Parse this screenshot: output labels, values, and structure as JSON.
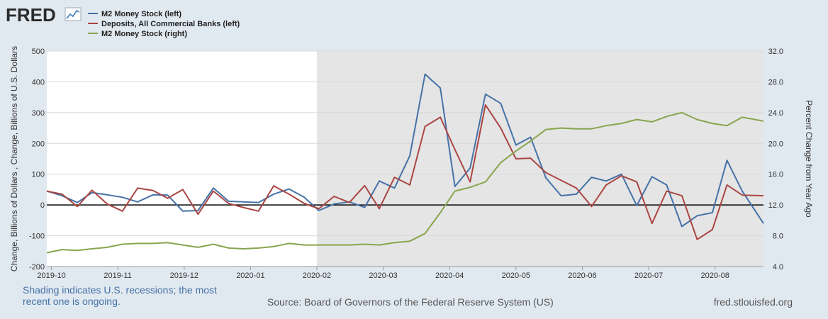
{
  "header": {
    "logo_text": "FRED",
    "legend": [
      {
        "label": "M2 Money Stock (left)",
        "color": "#4572a7"
      },
      {
        "label": "Deposits, All Commercial Banks (left)",
        "color": "#aa4643"
      },
      {
        "label": "M2 Money Stock (right)",
        "color": "#89a54e"
      }
    ]
  },
  "chart_data": {
    "type": "line",
    "x_tick_labels": [
      "2019-10",
      "2019-11",
      "2019-12",
      "2020-01",
      "2020-02",
      "2020-03",
      "2020-04",
      "2020-05",
      "2020-06",
      "2020-07",
      "2020-08"
    ],
    "left_axis": {
      "title": "Change, Billions of Dollars , Change, Billions of U.S. Dollars",
      "ylim": [
        -200,
        500
      ],
      "ticks": [
        -200,
        -100,
        0,
        100,
        200,
        300,
        400,
        500
      ],
      "tick_labels": [
        "-200",
        "-100",
        "0",
        "100",
        "200",
        "300",
        "400",
        "500"
      ]
    },
    "right_axis": {
      "title": "Percent Change from Year Ago",
      "ylim": [
        4.0,
        32.0
      ],
      "ticks": [
        4,
        8,
        12,
        16,
        20,
        24,
        28,
        32
      ],
      "tick_labels": [
        "4.0",
        "8.0",
        "12.0",
        "16.0",
        "20.0",
        "24.0",
        "28.0",
        "32.0"
      ]
    },
    "recession_start_index": 4,
    "x_range": [
      -0.07,
      10.73
    ],
    "series": [
      {
        "name": "M2 Money Stock (left)",
        "axis": "left",
        "color": "#4572a7",
        "x": [
          -0.07,
          0.16,
          0.39,
          0.61,
          0.84,
          1.07,
          1.3,
          1.53,
          1.75,
          1.98,
          2.21,
          2.44,
          2.67,
          2.89,
          3.12,
          3.35,
          3.58,
          3.81,
          4.03,
          4.26,
          4.49,
          4.72,
          4.94,
          5.17,
          5.4,
          5.63,
          5.86,
          6.08,
          6.31,
          6.54,
          6.77,
          7.0,
          7.22,
          7.45,
          7.68,
          7.91,
          8.14,
          8.36,
          8.59,
          8.82,
          9.05,
          9.27,
          9.5,
          9.73,
          9.96,
          10.18,
          10.41,
          10.73
        ],
        "values": [
          45,
          30,
          8,
          40,
          33,
          25,
          10,
          33,
          32,
          -20,
          -18,
          55,
          12,
          10,
          8,
          35,
          52,
          25,
          -18,
          3,
          10,
          -8,
          78,
          55,
          160,
          425,
          380,
          60,
          120,
          360,
          330,
          195,
          220,
          88,
          30,
          35,
          90,
          78,
          100,
          -2,
          92,
          65,
          -70,
          -35,
          -25,
          145,
          45,
          -60
        ]
      },
      {
        "name": "Deposits, All Commercial Banks (left)",
        "axis": "left",
        "color": "#aa4643",
        "x": [
          -0.07,
          0.16,
          0.39,
          0.61,
          0.84,
          1.07,
          1.3,
          1.53,
          1.75,
          1.98,
          2.21,
          2.44,
          2.67,
          2.89,
          3.12,
          3.35,
          3.58,
          3.81,
          4.03,
          4.26,
          4.49,
          4.72,
          4.94,
          5.17,
          5.4,
          5.63,
          5.86,
          6.08,
          6.31,
          6.54,
          6.77,
          7.0,
          7.22,
          7.45,
          7.68,
          7.91,
          8.14,
          8.36,
          8.59,
          8.82,
          9.05,
          9.27,
          9.5,
          9.73,
          9.96,
          10.18,
          10.41,
          10.73
        ],
        "values": [
          45,
          35,
          -5,
          48,
          3,
          -20,
          55,
          47,
          22,
          50,
          -30,
          45,
          5,
          -8,
          -20,
          62,
          35,
          5,
          -12,
          28,
          8,
          63,
          -12,
          90,
          65,
          255,
          285,
          180,
          75,
          325,
          250,
          150,
          152,
          105,
          80,
          55,
          -5,
          65,
          95,
          75,
          -60,
          45,
          30,
          -112,
          -80,
          65,
          32,
          30
        ]
      },
      {
        "name": "M2 Money Stock (right)",
        "axis": "right",
        "color": "#89a54e",
        "x": [
          -0.07,
          0.16,
          0.39,
          0.61,
          0.84,
          1.07,
          1.3,
          1.53,
          1.75,
          1.98,
          2.21,
          2.44,
          2.67,
          2.89,
          3.12,
          3.35,
          3.58,
          3.81,
          4.03,
          4.26,
          4.49,
          4.72,
          4.94,
          5.17,
          5.4,
          5.63,
          5.86,
          6.08,
          6.31,
          6.54,
          6.77,
          7.0,
          7.22,
          7.45,
          7.68,
          7.91,
          8.14,
          8.36,
          8.59,
          8.82,
          9.05,
          9.27,
          9.5,
          9.73,
          9.96,
          10.18,
          10.41,
          10.73
        ],
        "values": [
          5.8,
          6.2,
          6.1,
          6.3,
          6.5,
          6.9,
          7.0,
          7.0,
          7.1,
          6.8,
          6.5,
          6.9,
          6.4,
          6.3,
          6.4,
          6.6,
          7.0,
          6.8,
          6.8,
          6.8,
          6.8,
          6.9,
          6.8,
          7.1,
          7.3,
          8.3,
          11.0,
          13.8,
          14.3,
          15.0,
          17.5,
          19.0,
          20.3,
          21.8,
          22.0,
          21.9,
          21.9,
          22.3,
          22.6,
          23.1,
          22.8,
          23.5,
          24.0,
          23.1,
          22.6,
          22.3,
          23.4,
          22.9
        ]
      }
    ]
  },
  "footer": {
    "shading_note": "Shading indicates U.S. recessions; the most recent one is ongoing.",
    "source": "Source: Board of Governors of the Federal Reserve System (US)",
    "site": "fred.stlouisfed.org"
  }
}
